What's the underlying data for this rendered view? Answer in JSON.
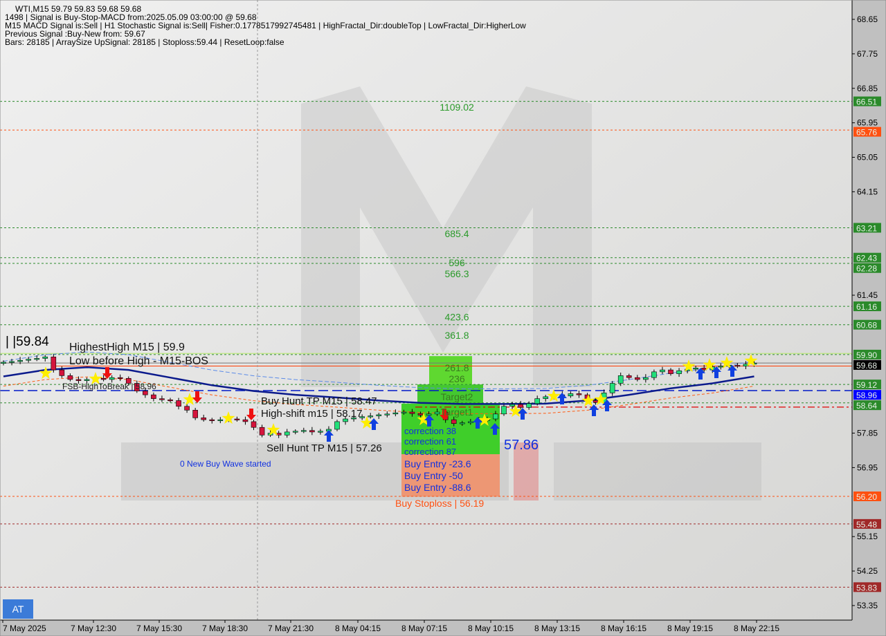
{
  "header": {
    "symbol_line": "WTI,M15  59.79 59.83 59.68 59.68",
    "signal_line": "1498 | Signal is Buy-Stop-MACD from:2025.05.09 03:00:00 @ 59.68",
    "indicators_line": "M15 MACD Signal is:Sell | H1 Stochastic Signal is:Sell| Fisher:0.1778517992745481 | HighFractal_Dir:doubleTop | LowFractal_Dir:HigherLow",
    "previous_line": "Previous Signal :Buy-New from: 59.67",
    "bars_line": "Bars: 28185 | ArraySize UpSignal: 28185 | Stoploss:59.44 | ResetLoop:false"
  },
  "at_button": "AT",
  "watermark": "MARKETZITRADE",
  "colors": {
    "bull": "#22e07a",
    "bear": "#d4143c",
    "ma": "#0b1a8c",
    "green_label": "#2a8a2a",
    "orange_label": "#ff5010",
    "red_label": "#a02828",
    "blue_label": "#0000ff",
    "zone_green": "#3fce2a",
    "zone_orange": "#f0906a"
  },
  "chart_data": {
    "type": "candlestick",
    "symbol": "WTI",
    "timeframe": "M15",
    "ylim": [
      53.1,
      68.9
    ],
    "y_ticks": [
      "68.65",
      "67.75",
      "66.85",
      "65.95",
      "65.05",
      "64.15",
      "61.45",
      "57.85",
      "56.95",
      "55.15",
      "54.25",
      "53.35"
    ],
    "x_ticks": [
      "7 May 2025",
      "7 May 12:30",
      "7 May 15:30",
      "7 May 18:30",
      "7 May 21:30",
      "8 May 04:15",
      "8 May 07:15",
      "8 May 10:15",
      "8 May 13:15",
      "8 May 16:15",
      "8 May 19:15",
      "8 May 22:15"
    ],
    "closes": [
      59.7,
      59.72,
      59.75,
      59.78,
      59.8,
      59.84,
      59.5,
      59.35,
      59.25,
      59.22,
      59.25,
      59.28,
      59.25,
      59.3,
      59.28,
      59.15,
      58.95,
      58.85,
      58.75,
      58.72,
      58.7,
      58.55,
      58.45,
      58.25,
      58.2,
      58.18,
      58.2,
      58.22,
      58.2,
      58.15,
      58.0,
      57.8,
      57.85,
      57.8,
      57.88,
      57.9,
      57.92,
      57.88,
      57.9,
      57.95,
      58.15,
      58.22,
      58.25,
      58.28,
      58.3,
      58.33,
      58.35,
      58.38,
      58.4,
      58.36,
      58.32,
      58.35,
      58.4,
      58.2,
      58.1,
      58.12,
      58.15,
      58.18,
      58.22,
      58.35,
      58.55,
      58.6,
      58.52,
      58.62,
      58.75,
      58.8,
      58.85,
      58.82,
      58.88,
      58.85,
      58.7,
      58.65,
      58.9,
      59.15,
      59.35,
      59.3,
      59.25,
      59.3,
      59.45,
      59.5,
      59.4,
      59.48,
      59.52,
      59.55,
      59.5,
      59.58,
      59.6,
      59.62,
      59.6,
      59.65,
      59.68
    ],
    "moving_average": [
      59.33,
      59.5,
      59.57,
      59.5,
      59.3,
      59.1,
      58.95,
      58.85,
      58.78,
      58.7,
      58.64,
      58.61,
      58.61,
      58.62,
      58.7,
      58.85,
      59.02,
      59.15,
      59.33
    ],
    "levels": [
      {
        "price": 66.51,
        "label": "66.51",
        "kind": "green"
      },
      {
        "price": 65.76,
        "label": "65.76",
        "kind": "orange"
      },
      {
        "price": 63.21,
        "label": "63.21",
        "kind": "green"
      },
      {
        "price": 62.43,
        "label": "62.43",
        "kind": "green"
      },
      {
        "price": 62.28,
        "label": "62.28",
        "kind": "green"
      },
      {
        "price": 61.16,
        "label": "61.16",
        "kind": "green"
      },
      {
        "price": 60.68,
        "label": "60.68",
        "kind": "green"
      },
      {
        "price": 59.9,
        "label": "59.90",
        "kind": "green"
      },
      {
        "price": 59.68,
        "label": "59.68",
        "kind": "current"
      },
      {
        "price": 59.12,
        "label": "59.12",
        "kind": "green"
      },
      {
        "price": 58.96,
        "label": "58.96",
        "kind": "blue"
      },
      {
        "price": 58.64,
        "label": "58.64",
        "kind": "green"
      },
      {
        "price": 56.2,
        "label": "56.20",
        "kind": "orange"
      },
      {
        "price": 55.48,
        "label": "55.48",
        "kind": "red"
      },
      {
        "price": 53.83,
        "label": "53.83",
        "kind": "red"
      }
    ],
    "fib_labels": [
      {
        "price": 66.36,
        "text": "1109.02"
      },
      {
        "price": 63.06,
        "text": "685.4"
      },
      {
        "price": 62.3,
        "text": "596"
      },
      {
        "price": 62.15,
        "text": "566.3"
      },
      {
        "price": 60.88,
        "text": "423.6"
      },
      {
        "price": 60.4,
        "text": "361.8"
      },
      {
        "price": 59.56,
        "text": "261.8"
      },
      {
        "price": 59.48,
        "text": "236"
      },
      {
        "price": 58.8,
        "text": "Target2"
      },
      {
        "price": 58.4,
        "text": "Target1"
      }
    ],
    "annotations": {
      "highest_high": "HighestHigh    M15 | 59.9",
      "low_before_high": "Low before High - M15-BOS",
      "last_high": "59.84",
      "fsb": "FSB-HighToBreak | 58.96",
      "buy_hunt": "Buy Hunt TP M15 | 58.47",
      "high_shift": "High-shift m15 | 58.17",
      "sell_hunt": "Sell Hunt TP M15 | 57.26",
      "wave": "0 New Buy Wave started",
      "correction38": "correction 38",
      "correction61": "correction 61",
      "correction87": "correction 87",
      "entry_price": "57.86",
      "buy_entry_23": "Buy Entry -23.6",
      "buy_entry_50": "Buy Entry -50",
      "buy_entry_88": "Buy Entry -88.6",
      "buy_stoploss": "Buy Stoploss | 56.19"
    }
  }
}
